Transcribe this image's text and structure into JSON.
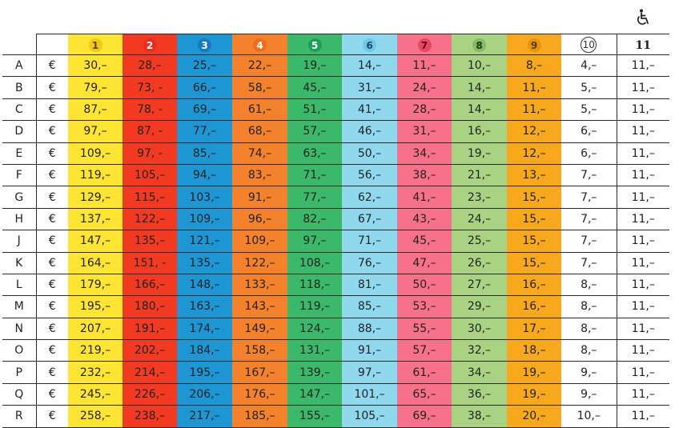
{
  "table": {
    "header_numbers": [
      "1",
      "2",
      "3",
      "4",
      "5",
      "6",
      "7",
      "8",
      "9",
      "10",
      "11"
    ],
    "category_colors": [
      "#ffe533",
      "#f23a22",
      "#1f96d4",
      "#f4812b",
      "#3cb86a",
      "#8fd8ee",
      "#f7718a",
      "#a9d282",
      "#f7a81c",
      "#ffffff",
      "#ffffff"
    ],
    "badge_colors": [
      "#f2c81f",
      "#e23020",
      "#1a79b8",
      "#ee6c1c",
      "#1f9e56",
      "#6ec7e4",
      "#e8475f",
      "#84bc61",
      "#e8950e"
    ],
    "badge_text_colors": [
      "#5a4a00",
      "#ffffff",
      "#ffffff",
      "#ffffff",
      "#ffffff",
      "#1a4a66",
      "#5a0a1a",
      "#1a3a10",
      "#5a3800"
    ],
    "currency": "€",
    "wheelchair_icon": "wheelchair-icon",
    "rows": [
      {
        "label": "A",
        "prices": [
          "30,–",
          "28,–",
          "25,–",
          "22,–",
          "19,–",
          "14,–",
          "11,–",
          "10,–",
          "8,–",
          "4,–",
          "11,–"
        ]
      },
      {
        "label": "B",
        "prices": [
          "79,–",
          "73, -",
          "66,–",
          "58,–",
          "45,–",
          "31,–",
          "24,–",
          "14,–",
          "11,–",
          "5,–",
          "11,–"
        ]
      },
      {
        "label": "C",
        "prices": [
          "87,–",
          "78, -",
          "69,–",
          "61,–",
          "51,–",
          "41,–",
          "28,–",
          "14,–",
          "11,–",
          "5,–",
          "11,–"
        ]
      },
      {
        "label": "D",
        "prices": [
          "97,–",
          "87, -",
          "77,–",
          "68,–",
          "57,–",
          "46,–",
          "31,–",
          "16,–",
          "12,–",
          "6,–",
          "11,–"
        ]
      },
      {
        "label": "E",
        "prices": [
          "109,–",
          "97, -",
          "85,–",
          "74,–",
          "63,–",
          "50,–",
          "34,–",
          "19,–",
          "12,–",
          "6,–",
          "11,–"
        ]
      },
      {
        "label": "F",
        "prices": [
          "119,–",
          "105,–",
          "94,–",
          "83,–",
          "71,–",
          "56,–",
          "38,–",
          "21,–",
          "13,–",
          "7,–",
          "11,–"
        ]
      },
      {
        "label": "G",
        "prices": [
          "129,–",
          "115,–",
          "103,–",
          "91,–",
          "77,–",
          "62,–",
          "41,–",
          "23,–",
          "15,–",
          "7,–",
          "11,–"
        ]
      },
      {
        "label": "H",
        "prices": [
          "137,–",
          "122,–",
          "109,–",
          "96,–",
          "82,–",
          "67,–",
          "43,–",
          "24,–",
          "15,–",
          "7,–",
          "11,–"
        ]
      },
      {
        "label": "J",
        "prices": [
          "147,–",
          "135,–",
          "121,–",
          "109,–",
          "97,–",
          "71,–",
          "45,–",
          "25,–",
          "15,–",
          "7,–",
          "11,–"
        ]
      },
      {
        "label": "K",
        "prices": [
          "164,–",
          "151, -",
          "135,–",
          "122,–",
          "108,–",
          "76,–",
          "47,–",
          "26,–",
          "15,–",
          "7,–",
          "11,–"
        ]
      },
      {
        "label": "L",
        "prices": [
          "179,–",
          "166,–",
          "148,–",
          "133,–",
          "118,–",
          "81,–",
          "50,–",
          "27,–",
          "16,–",
          "8,–",
          "11,–"
        ]
      },
      {
        "label": "M",
        "prices": [
          "195,–",
          "180,–",
          "163,–",
          "143,–",
          "119,–",
          "85,–",
          "53,–",
          "29,–",
          "16,–",
          "8,–",
          "11,–"
        ]
      },
      {
        "label": "N",
        "prices": [
          "207,–",
          "191,–",
          "174,–",
          "149,–",
          "124,–",
          "88,–",
          "55,–",
          "30,–",
          "17,–",
          "8,–",
          "11,–"
        ]
      },
      {
        "label": "O",
        "prices": [
          "219,–",
          "202,–",
          "184,–",
          "158,–",
          "131,–",
          "91,–",
          "57,–",
          "32,–",
          "18,–",
          "8,–",
          "11,–"
        ]
      },
      {
        "label": "P",
        "prices": [
          "232,–",
          "214,–",
          "195,–",
          "167,–",
          "139,–",
          "97,–",
          "61,–",
          "34,–",
          "19,–",
          "9,–",
          "11,–"
        ]
      },
      {
        "label": "Q",
        "prices": [
          "245,–",
          "226,–",
          "206,–",
          "176,–",
          "147,–",
          "101,–",
          "65,–",
          "36,–",
          "19,–",
          "9,–",
          "11,–"
        ]
      },
      {
        "label": "R",
        "prices": [
          "258,–",
          "238,–",
          "217,–",
          "185,–",
          "155,–",
          "105,–",
          "69,–",
          "38,–",
          "20,–",
          "10,–",
          "11,–"
        ]
      }
    ]
  }
}
